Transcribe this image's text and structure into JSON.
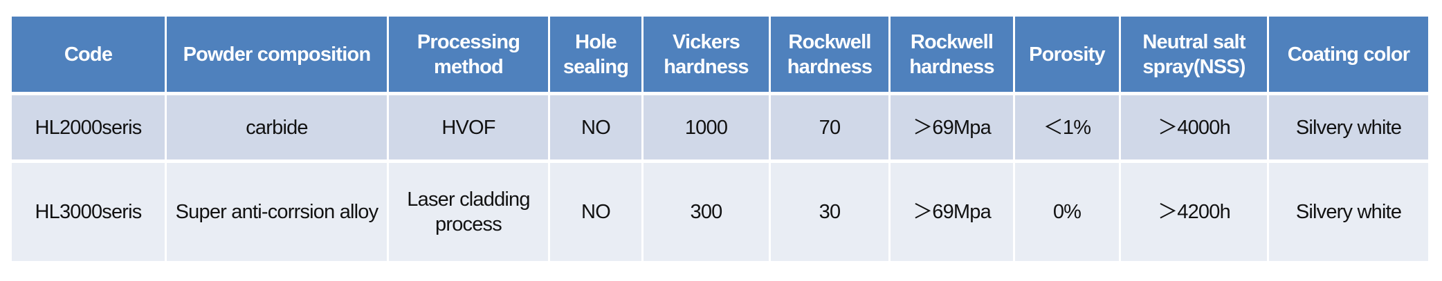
{
  "colors": {
    "header": "#4f81bd",
    "row_odd": "#d0d8e8",
    "row_even": "#e9edf4"
  },
  "headers": [
    "Code",
    "Powder composition",
    "Processing method",
    "Hole sealing",
    "Vickers hardness",
    "Rockwell hardness",
    "Rockwell hardness",
    "Porosity",
    "Neutral salt spray(NSS)",
    "Coating color"
  ],
  "rows": [
    [
      "HL2000seris",
      "carbide",
      "HVOF",
      "NO",
      "1000",
      "70",
      "＞69Mpa",
      "＜1%",
      "＞4000h",
      "Silvery white"
    ],
    [
      "HL3000seris",
      "Super anti-corrsion alloy",
      "Laser cladding process",
      "NO",
      "300",
      "30",
      "＞69Mpa",
      "0%",
      "＞4200h",
      "Silvery white"
    ]
  ]
}
